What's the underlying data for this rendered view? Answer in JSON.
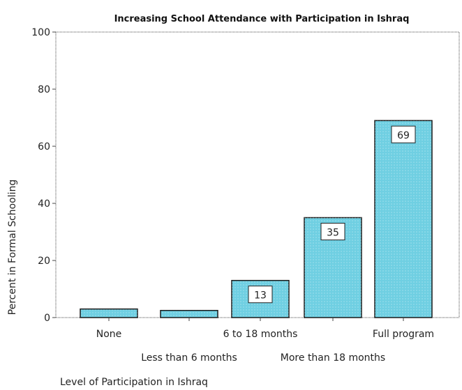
{
  "chart_data": {
    "type": "bar",
    "title": "Increasing School Attendance with Participation in Ishraq",
    "xlabel": "Level of Participation in Ishraq",
    "ylabel": "Percent in Formal Schooling",
    "categories": [
      "None",
      "Less than 6 months",
      "6 to 18 months",
      "More than 18 months",
      "Full program"
    ],
    "values": [
      3,
      2.5,
      13,
      35,
      69
    ],
    "data_labels": [
      "",
      "",
      "13",
      "35",
      "69"
    ],
    "y_ticks": [
      "0",
      "20",
      "40",
      "60",
      "80",
      "100"
    ],
    "ylim": [
      0,
      100
    ],
    "grid": false,
    "legend": "none",
    "colors": {
      "bar_fill": "#6fcfe2",
      "bar_stroke": "#1a1a1a",
      "axis": "#444444"
    }
  }
}
